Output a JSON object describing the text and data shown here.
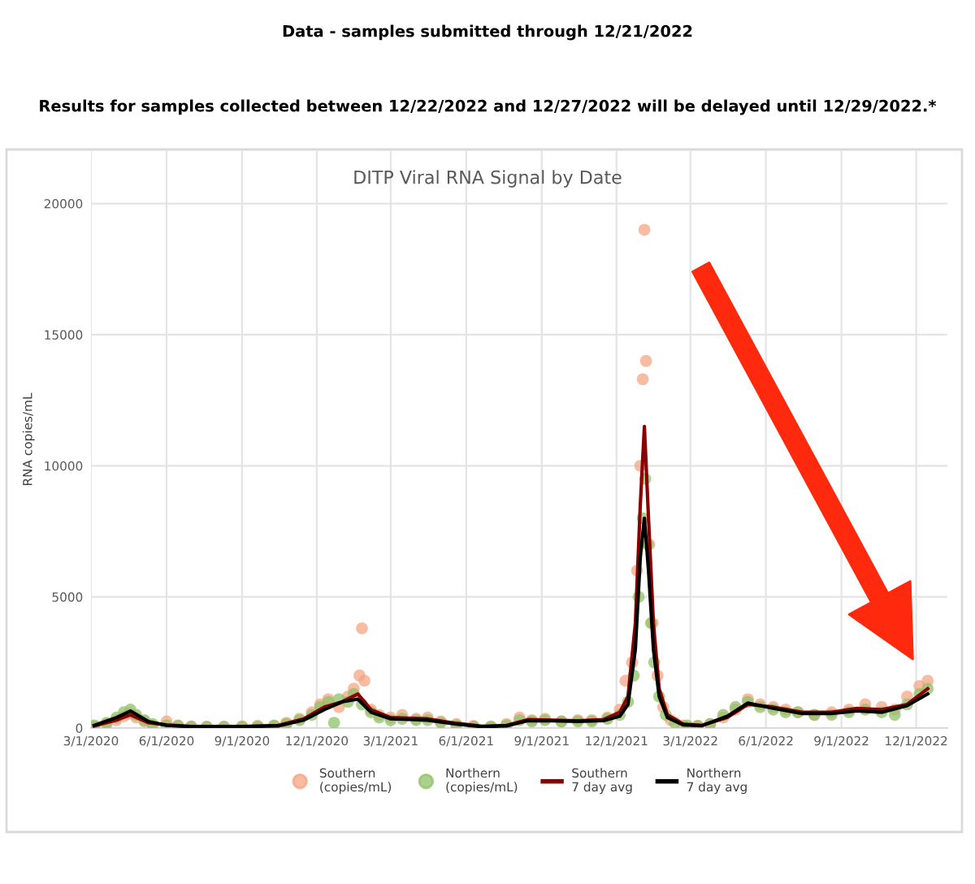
{
  "chart_data": {
    "type": "scatter",
    "title": "DITP Viral RNA Signal by Date",
    "annotations": [
      "Data - samples submitted through 12/21/2022",
      "Results for samples collected between 12/22/2022 and 12/27/2022 will be delayed until 12/29/2022.*"
    ],
    "ylabel": "RNA copies/mL",
    "xlim": [
      "2020-03-01",
      "2023-01-08"
    ],
    "xticks": [
      {
        "value": "2020-03-01",
        "label": "3/1/2020"
      },
      {
        "value": "2020-06-01",
        "label": "6/1/2020"
      },
      {
        "value": "2020-09-01",
        "label": "9/1/2020"
      },
      {
        "value": "2020-12-01",
        "label": "12/1/2020"
      },
      {
        "value": "2021-03-01",
        "label": "3/1/2021"
      },
      {
        "value": "2021-06-01",
        "label": "6/1/2021"
      },
      {
        "value": "2021-09-01",
        "label": "9/1/2021"
      },
      {
        "value": "2021-12-01",
        "label": "12/1/2021"
      },
      {
        "value": "2022-03-01",
        "label": "3/1/2022"
      },
      {
        "value": "2022-06-01",
        "label": "6/1/2022"
      },
      {
        "value": "2022-09-01",
        "label": "9/1/2022"
      },
      {
        "value": "2022-12-01",
        "label": "12/1/2022"
      }
    ],
    "ylim": [
      0,
      22000
    ],
    "yticks": [
      0,
      5000,
      10000,
      15000,
      20000
    ],
    "grid": true,
    "legend": "bottom",
    "series": [
      {
        "name": "Southern\n(copies/mL)",
        "color": "#f4a582",
        "x": [
          "2020-03-05",
          "2020-03-20",
          "2020-04-01",
          "2020-04-10",
          "2020-04-18",
          "2020-04-25",
          "2020-05-05",
          "2020-05-15",
          "2020-06-01",
          "2020-06-15",
          "2020-07-01",
          "2020-07-20",
          "2020-08-10",
          "2020-09-01",
          "2020-09-20",
          "2020-10-10",
          "2020-10-25",
          "2020-11-10",
          "2020-11-25",
          "2020-12-05",
          "2020-12-15",
          "2020-12-28",
          "2021-01-08",
          "2021-01-15",
          "2021-01-22",
          "2021-01-25",
          "2021-01-28",
          "2021-02-05",
          "2021-02-15",
          "2021-03-01",
          "2021-03-15",
          "2021-04-01",
          "2021-04-15",
          "2021-05-01",
          "2021-05-20",
          "2021-06-10",
          "2021-07-01",
          "2021-07-20",
          "2021-08-05",
          "2021-08-20",
          "2021-09-05",
          "2021-09-25",
          "2021-10-15",
          "2021-11-01",
          "2021-11-20",
          "2021-12-05",
          "2021-12-12",
          "2021-12-20",
          "2021-12-26",
          "2021-12-30",
          "2022-01-02",
          "2022-01-04",
          "2022-01-06",
          "2022-01-10",
          "2022-01-14",
          "2022-01-20",
          "2022-01-27",
          "2022-02-05",
          "2022-02-20",
          "2022-03-10",
          "2022-03-25",
          "2022-04-10",
          "2022-04-25",
          "2022-05-10",
          "2022-05-25",
          "2022-06-10",
          "2022-06-25",
          "2022-07-10",
          "2022-07-30",
          "2022-08-20",
          "2022-09-10",
          "2022-09-30",
          "2022-10-20",
          "2022-11-05",
          "2022-11-20",
          "2022-12-05",
          "2022-12-15"
        ],
        "values": [
          50,
          150,
          300,
          450,
          550,
          400,
          250,
          100,
          250,
          100,
          60,
          50,
          50,
          60,
          80,
          100,
          200,
          350,
          600,
          900,
          1100,
          800,
          1200,
          1500,
          2000,
          3800,
          1800,
          700,
          500,
          400,
          500,
          350,
          400,
          250,
          150,
          80,
          60,
          150,
          400,
          300,
          350,
          250,
          300,
          300,
          400,
          700,
          1800,
          2500,
          6000,
          10000,
          13300,
          19000,
          14000,
          7000,
          4000,
          2000,
          800,
          300,
          100,
          80,
          150,
          400,
          700,
          1100,
          900,
          800,
          700,
          600,
          500,
          600,
          700,
          900,
          800,
          700,
          1200,
          1600,
          1800
        ]
      },
      {
        "name": "Northern\n(copies/mL)",
        "color": "#8fc16a",
        "x": [
          "2020-03-05",
          "2020-03-20",
          "2020-04-01",
          "2020-04-10",
          "2020-04-18",
          "2020-04-25",
          "2020-05-05",
          "2020-05-15",
          "2020-06-01",
          "2020-06-15",
          "2020-07-01",
          "2020-07-20",
          "2020-08-10",
          "2020-09-01",
          "2020-09-20",
          "2020-10-10",
          "2020-10-25",
          "2020-11-10",
          "2020-11-25",
          "2020-12-05",
          "2020-12-15",
          "2020-12-22",
          "2020-12-28",
          "2021-01-08",
          "2021-01-15",
          "2021-01-25",
          "2021-02-05",
          "2021-02-15",
          "2021-03-01",
          "2021-03-15",
          "2021-04-01",
          "2021-04-15",
          "2021-05-01",
          "2021-05-20",
          "2021-06-10",
          "2021-07-01",
          "2021-07-20",
          "2021-08-05",
          "2021-08-20",
          "2021-09-05",
          "2021-09-25",
          "2021-10-15",
          "2021-11-01",
          "2021-11-20",
          "2021-12-05",
          "2021-12-15",
          "2021-12-22",
          "2021-12-28",
          "2022-01-02",
          "2022-01-05",
          "2022-01-08",
          "2022-01-12",
          "2022-01-16",
          "2022-01-22",
          "2022-01-30",
          "2022-02-10",
          "2022-02-25",
          "2022-03-10",
          "2022-03-25",
          "2022-04-10",
          "2022-04-25",
          "2022-05-10",
          "2022-05-25",
          "2022-06-10",
          "2022-06-25",
          "2022-07-10",
          "2022-07-30",
          "2022-08-20",
          "2022-09-10",
          "2022-09-30",
          "2022-10-20",
          "2022-11-05",
          "2022-11-20",
          "2022-12-05",
          "2022-12-15"
        ],
        "values": [
          100,
          200,
          400,
          600,
          700,
          500,
          300,
          150,
          100,
          80,
          50,
          40,
          40,
          50,
          60,
          80,
          150,
          300,
          500,
          800,
          1000,
          200,
          1100,
          1000,
          1300,
          900,
          600,
          400,
          300,
          350,
          300,
          300,
          200,
          100,
          50,
          40,
          100,
          300,
          250,
          300,
          250,
          250,
          250,
          350,
          500,
          1000,
          2000,
          5000,
          8000,
          9500,
          7000,
          4000,
          2500,
          1200,
          500,
          200,
          100,
          80,
          150,
          500,
          800,
          1000,
          800,
          700,
          600,
          600,
          500,
          500,
          600,
          700,
          600,
          500,
          900,
          1300,
          1500
        ]
      },
      {
        "name": "Southern\n7 day avg",
        "type": "line",
        "color": "#8b0000",
        "x": [
          "2020-03-05",
          "2020-04-01",
          "2020-04-18",
          "2020-05-10",
          "2020-06-01",
          "2020-07-01",
          "2020-09-01",
          "2020-10-15",
          "2020-11-15",
          "2020-12-10",
          "2021-01-01",
          "2021-01-20",
          "2021-02-05",
          "2021-03-01",
          "2021-04-15",
          "2021-05-20",
          "2021-06-20",
          "2021-07-20",
          "2021-08-15",
          "2021-09-15",
          "2021-10-15",
          "2021-11-15",
          "2021-12-05",
          "2021-12-15",
          "2021-12-24",
          "2021-12-30",
          "2022-01-04",
          "2022-01-09",
          "2022-01-15",
          "2022-01-22",
          "2022-02-01",
          "2022-02-20",
          "2022-03-15",
          "2022-04-15",
          "2022-05-10",
          "2022-06-10",
          "2022-07-15",
          "2022-08-20",
          "2022-09-20",
          "2022-10-20",
          "2022-11-20",
          "2022-12-15"
        ],
        "values": [
          80,
          300,
          500,
          200,
          120,
          60,
          60,
          100,
          350,
          800,
          1000,
          1300,
          700,
          400,
          350,
          180,
          70,
          100,
          320,
          300,
          280,
          320,
          600,
          1200,
          4000,
          8500,
          11500,
          8000,
          4000,
          1500,
          500,
          150,
          100,
          400,
          900,
          800,
          600,
          600,
          750,
          700,
          900,
          1500
        ]
      },
      {
        "name": "Northern\n7 day avg",
        "type": "line",
        "color": "#000000",
        "x": [
          "2020-03-05",
          "2020-04-01",
          "2020-04-18",
          "2020-05-10",
          "2020-06-01",
          "2020-07-01",
          "2020-09-01",
          "2020-10-15",
          "2020-11-15",
          "2020-12-10",
          "2021-01-01",
          "2021-01-20",
          "2021-02-05",
          "2021-03-01",
          "2021-04-15",
          "2021-05-20",
          "2021-06-20",
          "2021-07-20",
          "2021-08-15",
          "2021-09-15",
          "2021-10-15",
          "2021-11-15",
          "2021-12-05",
          "2021-12-15",
          "2021-12-24",
          "2021-12-30",
          "2022-01-04",
          "2022-01-09",
          "2022-01-15",
          "2022-01-22",
          "2022-02-01",
          "2022-02-20",
          "2022-03-15",
          "2022-04-15",
          "2022-05-10",
          "2022-06-10",
          "2022-07-15",
          "2022-08-20",
          "2022-09-20",
          "2022-10-20",
          "2022-11-20",
          "2022-12-15"
        ],
        "values": [
          100,
          400,
          650,
          250,
          100,
          50,
          50,
          80,
          300,
          700,
          1000,
          1100,
          600,
          350,
          300,
          150,
          50,
          80,
          280,
          270,
          250,
          280,
          450,
          900,
          3000,
          6500,
          8000,
          6000,
          3000,
          1200,
          400,
          120,
          90,
          450,
          950,
          750,
          550,
          550,
          650,
          600,
          850,
          1300
        ]
      }
    ]
  }
}
